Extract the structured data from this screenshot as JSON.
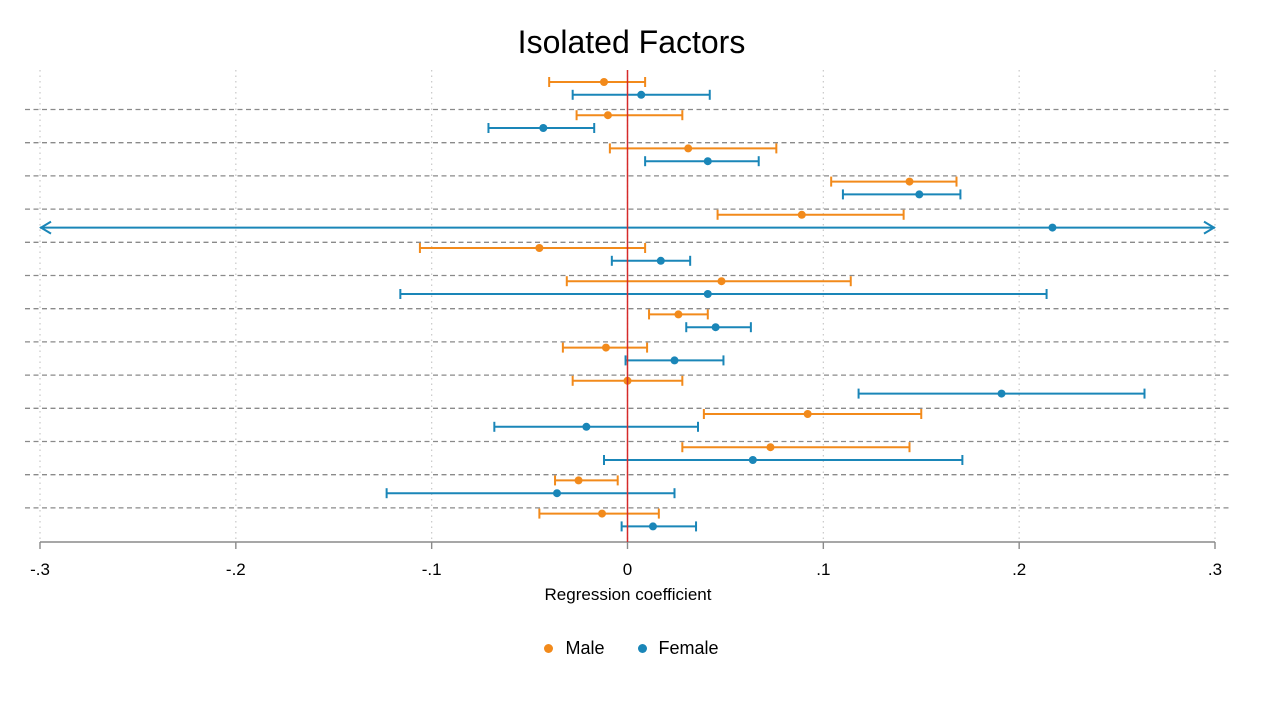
{
  "chart_data": {
    "type": "scatter",
    "title": "Isolated Factors",
    "xlabel": "Regression coefficient",
    "ylabel": "",
    "xlim": [
      -0.3,
      0.3
    ],
    "xticks": [
      -0.3,
      -0.2,
      -0.1,
      0,
      0.1,
      0.2,
      0.3
    ],
    "xtick_labels": [
      "-.3",
      "-.2",
      "-.1",
      "0",
      ".1",
      ".2",
      ".3"
    ],
    "reference_line_x": 0,
    "grid": true,
    "legend_position": "bottom",
    "rows": 14,
    "series": [
      {
        "name": "Male",
        "color": "#f28a1b",
        "points": [
          {
            "row": 0,
            "estimate": -0.012,
            "ci_low": -0.04,
            "ci_high": 0.009
          },
          {
            "row": 1,
            "estimate": -0.01,
            "ci_low": -0.026,
            "ci_high": 0.028
          },
          {
            "row": 2,
            "estimate": 0.031,
            "ci_low": -0.009,
            "ci_high": 0.076
          },
          {
            "row": 3,
            "estimate": 0.144,
            "ci_low": 0.104,
            "ci_high": 0.168
          },
          {
            "row": 4,
            "estimate": 0.089,
            "ci_low": 0.046,
            "ci_high": 0.141
          },
          {
            "row": 5,
            "estimate": -0.045,
            "ci_low": -0.106,
            "ci_high": 0.009
          },
          {
            "row": 6,
            "estimate": 0.048,
            "ci_low": -0.031,
            "ci_high": 0.114
          },
          {
            "row": 7,
            "estimate": 0.026,
            "ci_low": 0.011,
            "ci_high": 0.041
          },
          {
            "row": 8,
            "estimate": -0.011,
            "ci_low": -0.033,
            "ci_high": 0.01
          },
          {
            "row": 9,
            "estimate": 0.0,
            "ci_low": -0.028,
            "ci_high": 0.028
          },
          {
            "row": 10,
            "estimate": 0.092,
            "ci_low": 0.039,
            "ci_high": 0.15
          },
          {
            "row": 11,
            "estimate": 0.073,
            "ci_low": 0.028,
            "ci_high": 0.144
          },
          {
            "row": 12,
            "estimate": -0.025,
            "ci_low": -0.037,
            "ci_high": -0.005
          },
          {
            "row": 13,
            "estimate": -0.013,
            "ci_low": -0.045,
            "ci_high": 0.016
          }
        ]
      },
      {
        "name": "Female",
        "color": "#1a86b8",
        "points": [
          {
            "row": 0,
            "estimate": 0.007,
            "ci_low": -0.028,
            "ci_high": 0.042
          },
          {
            "row": 1,
            "estimate": -0.043,
            "ci_low": -0.071,
            "ci_high": -0.017
          },
          {
            "row": 2,
            "estimate": 0.041,
            "ci_low": 0.009,
            "ci_high": 0.067
          },
          {
            "row": 3,
            "estimate": 0.149,
            "ci_low": 0.11,
            "ci_high": 0.17
          },
          {
            "row": 4,
            "estimate": 0.217,
            "ci_low": -0.3,
            "ci_high": 0.3,
            "arrow_left": true,
            "arrow_right": true
          },
          {
            "row": 5,
            "estimate": 0.017,
            "ci_low": -0.008,
            "ci_high": 0.032
          },
          {
            "row": 6,
            "estimate": 0.041,
            "ci_low": -0.116,
            "ci_high": 0.214
          },
          {
            "row": 7,
            "estimate": 0.045,
            "ci_low": 0.03,
            "ci_high": 0.063
          },
          {
            "row": 8,
            "estimate": 0.024,
            "ci_low": -0.001,
            "ci_high": 0.049
          },
          {
            "row": 9,
            "estimate": 0.191,
            "ci_low": 0.118,
            "ci_high": 0.264
          },
          {
            "row": 10,
            "estimate": -0.021,
            "ci_low": -0.068,
            "ci_high": 0.036
          },
          {
            "row": 11,
            "estimate": 0.064,
            "ci_low": -0.012,
            "ci_high": 0.171
          },
          {
            "row": 12,
            "estimate": -0.036,
            "ci_low": -0.123,
            "ci_high": 0.024
          },
          {
            "row": 13,
            "estimate": 0.013,
            "ci_low": -0.003,
            "ci_high": 0.035
          }
        ]
      }
    ]
  },
  "legend": {
    "male_label": "Male",
    "female_label": "Female",
    "male_color": "#f28a1b",
    "female_color": "#1a86b8"
  }
}
